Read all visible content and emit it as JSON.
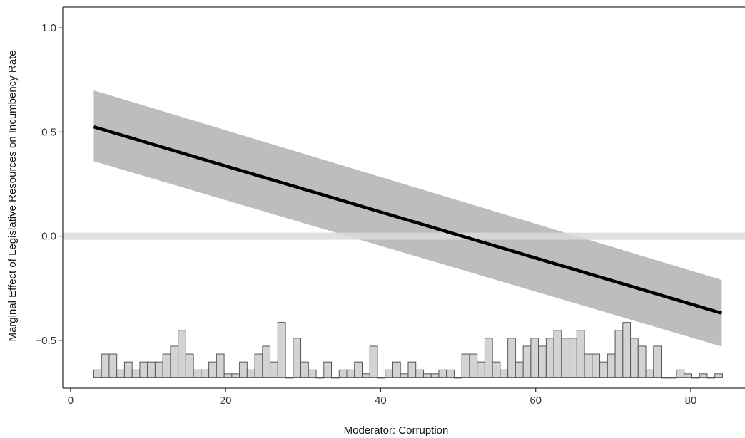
{
  "chart_data": {
    "type": "line",
    "title": "",
    "xlabel": "Moderator: Corruption",
    "ylabel": "Marginal Effect of Legislative Resources on Incumbency Rate",
    "xlim": [
      -1,
      87
    ],
    "ylim": [
      -0.73,
      1.1
    ],
    "x_ticks": [
      0,
      20,
      40,
      60,
      80
    ],
    "y_ticks": [
      -0.5,
      0.0,
      0.5,
      1.0
    ],
    "x_tick_labels": [
      "0",
      "20",
      "40",
      "60",
      "80"
    ],
    "y_tick_labels": [
      "−0.5",
      "0.0",
      "0.5",
      "1.0"
    ],
    "grid": false,
    "reference_line_y": 0.0,
    "marginal_effect": {
      "x": [
        3,
        84
      ],
      "y": [
        0.525,
        -0.37
      ]
    },
    "confidence_band": {
      "x": [
        3,
        84
      ],
      "upper": [
        0.7,
        -0.21
      ],
      "lower": [
        0.36,
        -0.53
      ]
    },
    "histogram": {
      "bin_width": 0.85,
      "baseline": -0.68,
      "counts": [
        1,
        3,
        3,
        1,
        2,
        1,
        2,
        2,
        2,
        3,
        4,
        6,
        3,
        1,
        1,
        2,
        3,
        0.5,
        0.5,
        2,
        1,
        3,
        4,
        2,
        7,
        0,
        5,
        2,
        1,
        0,
        2,
        0,
        1,
        1,
        2,
        0.5,
        4,
        0,
        1,
        2,
        0.5,
        2,
        1,
        0.5,
        0.5,
        1,
        1,
        0,
        3,
        3,
        2,
        5,
        2,
        1,
        5,
        2,
        4,
        5,
        4,
        5,
        6,
        5,
        5,
        6,
        3,
        3,
        2,
        3,
        6,
        7,
        5,
        4,
        1,
        4,
        0,
        0,
        1,
        0.5,
        0,
        0.5,
        0,
        0.5
      ],
      "x_start": 3,
      "bin_step": 0.989
    },
    "colors": {
      "line": "#000000",
      "band": "#bdbdbd",
      "reference": "#dadada",
      "bar_fill": "#d3d3d3",
      "bar_stroke": "#555555",
      "axis": "#333333"
    }
  }
}
